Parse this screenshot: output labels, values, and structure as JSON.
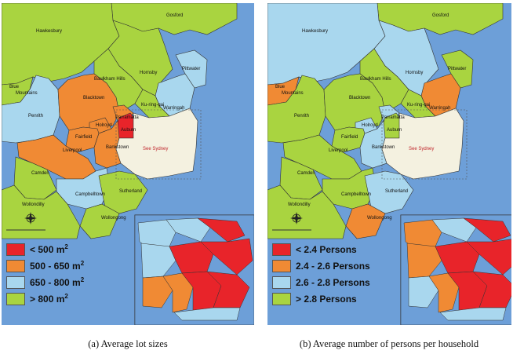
{
  "colors": {
    "red": "#e8242a",
    "orange": "#f08a34",
    "blue": "#a9d7ee",
    "green": "#a9d440",
    "sea": "#6d9fd8",
    "cream": "#f4f1e0",
    "white": "#ffffff"
  },
  "map_a": {
    "legend": [
      {
        "label": "< 500 m",
        "sup": "2",
        "color": "#e8242a"
      },
      {
        "label": "500 - 650 m",
        "sup": "2",
        "color": "#f08a34"
      },
      {
        "label": "650 - 800 m",
        "sup": "2",
        "color": "#a9d7ee"
      },
      {
        "label": "> 800 m",
        "sup": "2",
        "color": "#a9d440"
      }
    ],
    "caption": "(a) Average lot sizes",
    "regions": {
      "gosford": "green",
      "hawkesbury": "green",
      "hornsby": "green",
      "baulkham": "green",
      "pittwater": "blue",
      "warringah": "blue",
      "kuringgai": "green",
      "blue_mountains": "green",
      "penrith": "blue",
      "blacktown": "orange",
      "parramatta": "orange",
      "holroyd": "orange",
      "fairfield": "orange",
      "liverpool": "orange",
      "auburn": "red",
      "bankstown": "orange",
      "camden": "green",
      "campbelltown": "blue",
      "sutherland": "green",
      "wollongong": "green",
      "wollondilly": "green",
      "sydney": "cream"
    }
  },
  "map_b": {
    "legend": [
      {
        "label": "< 2.4 Persons",
        "sup": "",
        "color": "#e8242a"
      },
      {
        "label": "2.4 - 2.6 Persons",
        "sup": "",
        "color": "#f08a34"
      },
      {
        "label": "2.6 - 2.8 Persons",
        "sup": "",
        "color": "#a9d7ee"
      },
      {
        "label": "> 2.8 Persons",
        "sup": "",
        "color": "#a9d440"
      }
    ],
    "caption": "(b) Average number of persons per household",
    "regions": {
      "gosford": "green",
      "hawkesbury": "blue",
      "hornsby": "blue",
      "baulkham": "green",
      "pittwater": "green",
      "warringah": "orange",
      "kuringgai": "green",
      "blue_mountains": "orange",
      "penrith": "green",
      "blacktown": "green",
      "parramatta": "blue",
      "holroyd": "blue",
      "fairfield": "green",
      "liverpool": "green",
      "auburn": "green",
      "bankstown": "blue",
      "camden": "green",
      "campbelltown": "green",
      "sutherland": "blue",
      "wollongong": "orange",
      "wollondilly": "green",
      "sydney": "cream"
    }
  },
  "labels": {
    "gosford": "Gosford",
    "hawkesbury": "Hawkesbury",
    "baulkham": "Baulkham Hills",
    "hornsby": "Hornsby",
    "pittwater": "Pittwater",
    "blue_mountains_1": "Blue",
    "blue_mountains_2": "Mountains",
    "blacktown": "Blacktown",
    "kuringgai": "Ku-ring-gai",
    "warringah": "Warringah",
    "penrith": "Penrith",
    "parramatta": "Parramatta",
    "holroyd": "Holroyd",
    "auburn": "Auburn",
    "fairfield": "Fairfield",
    "liverpool": "Liverpool",
    "bankstown": "Bankstown",
    "see_sydney": "See Sydney",
    "camden": "Camden",
    "campbelltown": "Campbelltown",
    "sutherland": "Sutherland",
    "wollondilly": "Wollondilly",
    "wollongong": "Wollongong"
  }
}
